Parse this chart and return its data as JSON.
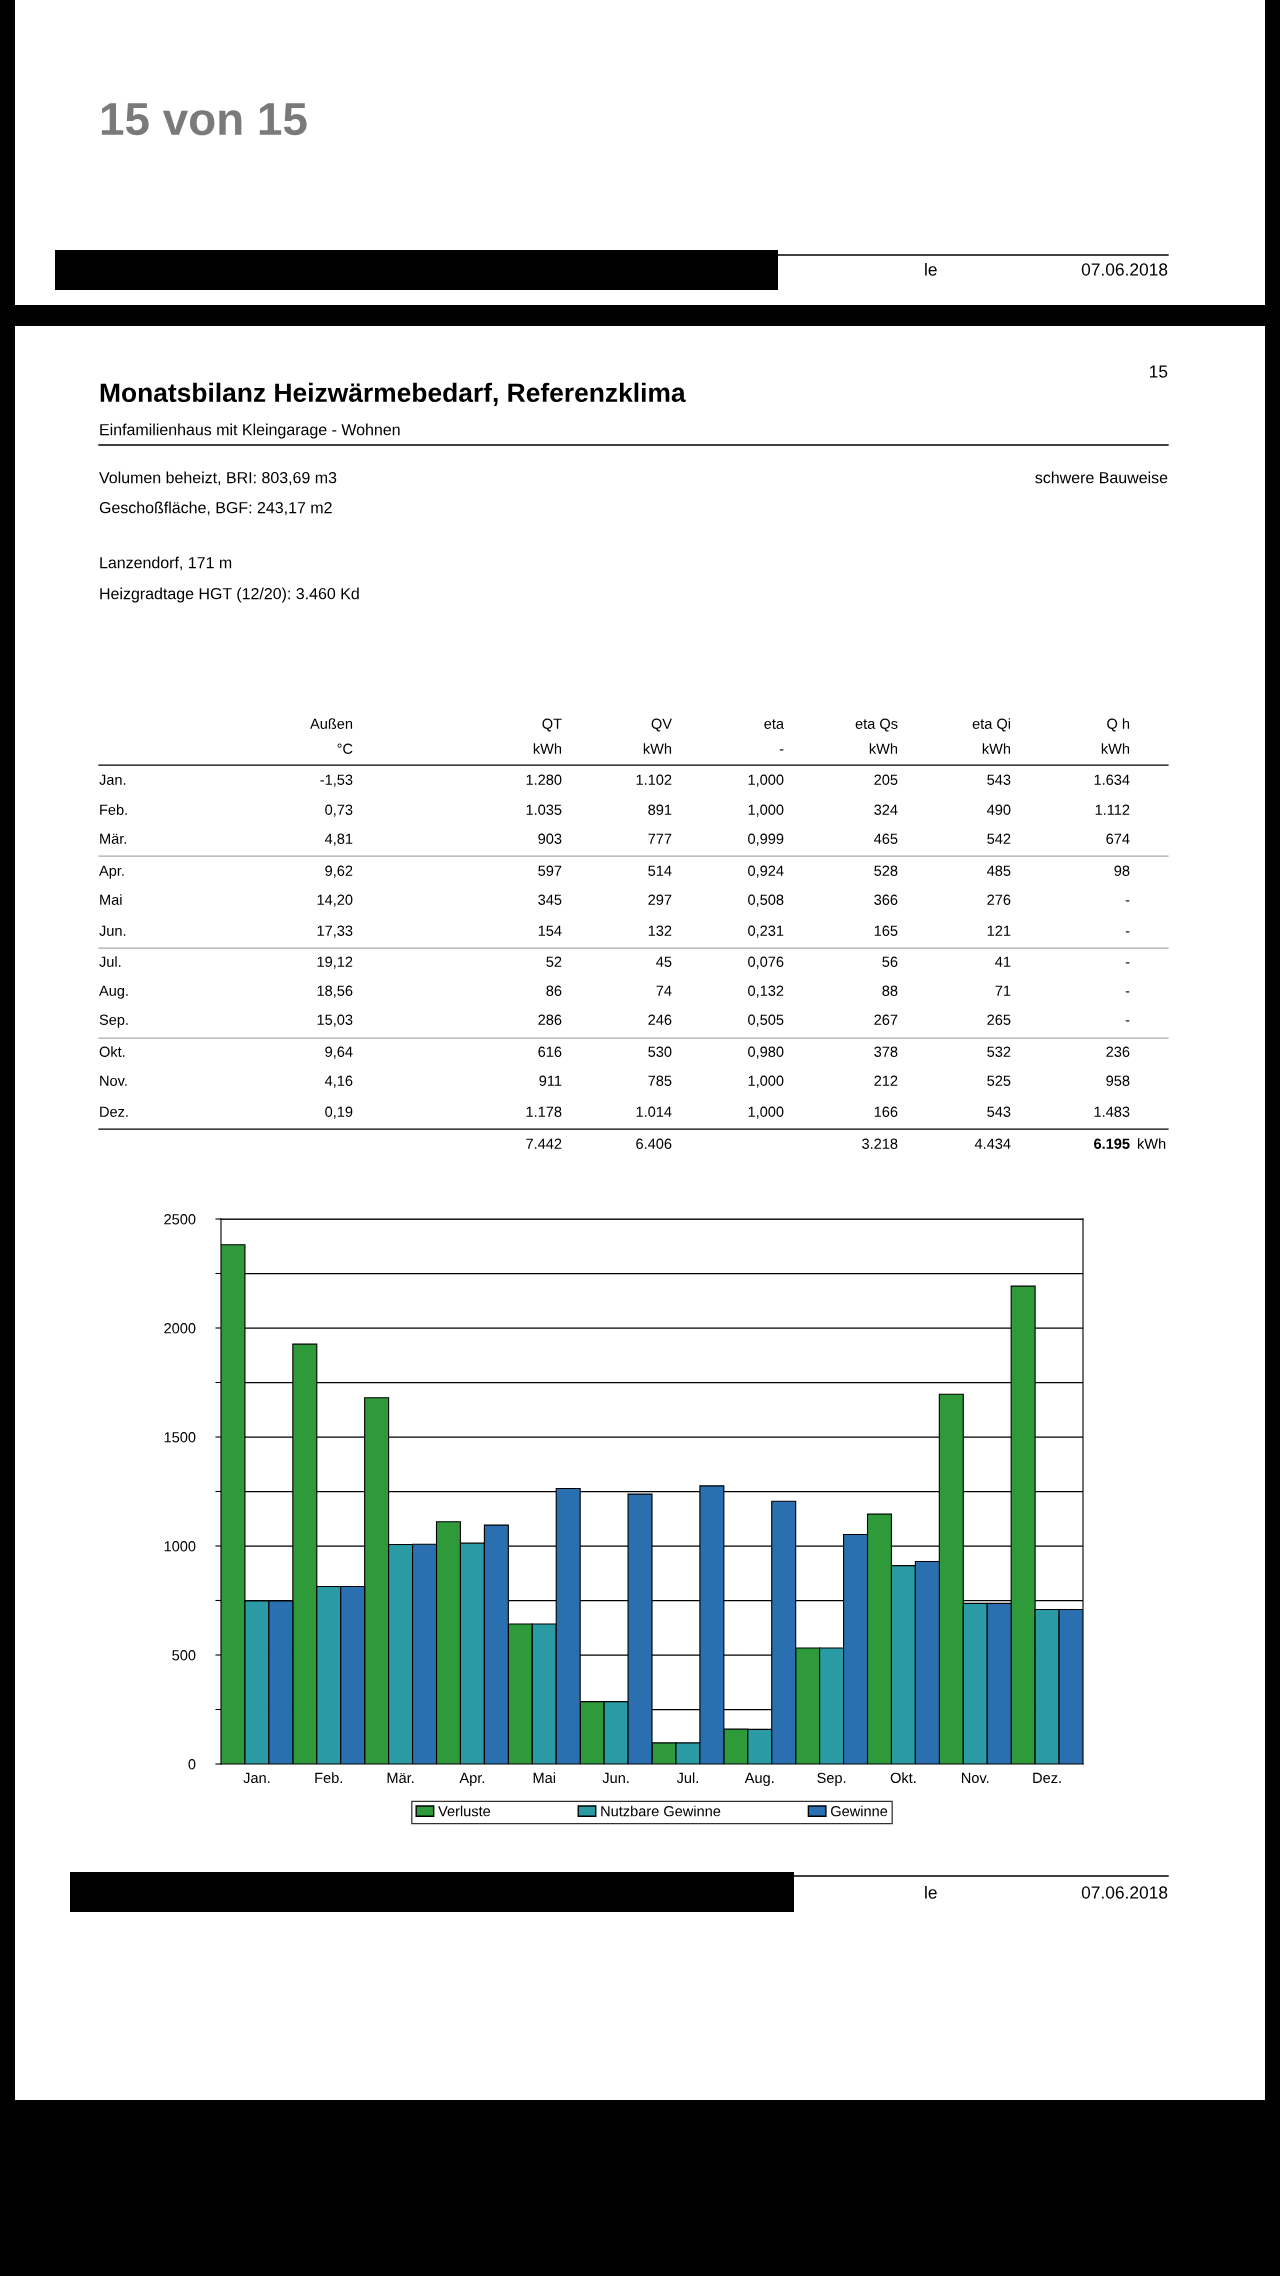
{
  "chart_data": {
    "type": "bar",
    "title": "Monatsbilanz Heizwärmebedarf, Referenzklima",
    "subtitle": "Einfamilienhaus mit Kleingarage - Wohnen",
    "categories": [
      "Jan.",
      "Feb.",
      "Mär.",
      "Apr.",
      "Mai",
      "Jun.",
      "Jul.",
      "Aug.",
      "Sep.",
      "Okt.",
      "Nov.",
      "Dez."
    ],
    "series": [
      {
        "name": "Verluste",
        "color": "#2e9a3a",
        "values": [
          2382,
          1926,
          1680,
          1111,
          642,
          286,
          97,
          160,
          532,
          1146,
          1696,
          2192
        ]
      },
      {
        "name": "Nutzbare Gewinne",
        "color": "#2a9ba5",
        "values": [
          748,
          814,
          1007,
          1013,
          642,
          286,
          97,
          159,
          532,
          910,
          737,
          709
        ]
      },
      {
        "name": "Gewinne",
        "color": "#2a70b0",
        "values": [
          748,
          814,
          1008,
          1096,
          1264,
          1238,
          1276,
          1205,
          1053,
          929,
          737,
          709
        ]
      }
    ],
    "ylim": [
      0,
      2500
    ],
    "yticks": [
      0,
      {
        "value": 250,
        "label": null
      },
      500,
      {
        "value": 750,
        "label": null
      },
      1000,
      {
        "value": 1250,
        "label": null
      },
      1500,
      {
        "value": 1750,
        "label": null
      },
      2000,
      {
        "value": 2250,
        "label": null
      },
      2500
    ],
    "grid": "y",
    "legend": "bottom",
    "annotations": [
      "15 von 15",
      "le",
      "07.06.2018",
      "15",
      "Volumen beheizt, BRI: 803,69 m3",
      "Geschoßfläche, BGF: 243,17 m2",
      "schwere Bauweise",
      "Lanzendorf, 171 m",
      "Heizgradtage HGT (12/20): 3.460 Kd",
      "\tAußen\tQT\tQV\teta\teta Qs\teta Qi\tQ h",
      "\t°C\tkWh\tkWh\t-\tkWh\tkWh\tkWh",
      "Jan.\t-1,53\t1.280\t1.102\t1,000\t205\t543\t1.634",
      "Feb.\t0,73\t1.035\t891\t1,000\t324\t490\t1.112",
      "Mär.\t4,81\t903\t777\t0,999\t465\t542\t674",
      "Apr.\t9,62\t597\t514\t0,924\t528\t485\t98",
      "Mai\t14,20\t345\t297\t0,508\t366\t276\t-",
      "Jun.\t17,33\t154\t132\t0,231\t165\t121\t-",
      "Jul.\t19,12\t52\t45\t0,076\t56\t41\t-",
      "Aug.\t18,56\t86\t74\t0,132\t88\t71\t-",
      "Sep.\t15,03\t286\t246\t0,505\t267\t265\t-",
      "Okt.\t9,64\t616\t530\t0,980\t378\t532\t236",
      "Nov.\t4,16\t911\t785\t1,000\t212\t525\t958",
      "Dez.\t0,19\t1.178\t1.014\t1,000\t166\t543\t1.483",
      "\t\t7.442\t6.406\t\t3.218\t4.434\t6.195\tkWh",
      "le",
      "07.06.2018"
    ]
  }
}
